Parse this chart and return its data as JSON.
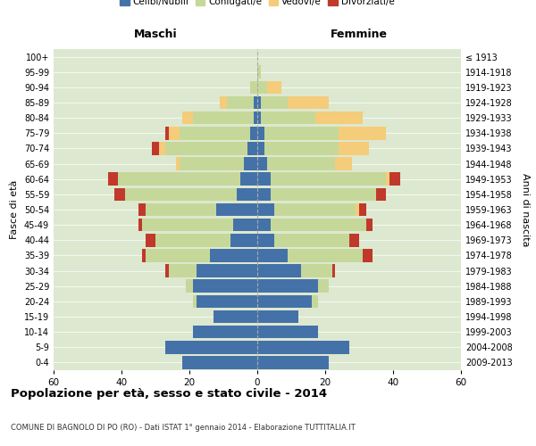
{
  "age_groups": [
    "0-4",
    "5-9",
    "10-14",
    "15-19",
    "20-24",
    "25-29",
    "30-34",
    "35-39",
    "40-44",
    "45-49",
    "50-54",
    "55-59",
    "60-64",
    "65-69",
    "70-74",
    "75-79",
    "80-84",
    "85-89",
    "90-94",
    "95-99",
    "100+"
  ],
  "birth_years": [
    "2009-2013",
    "2004-2008",
    "1999-2003",
    "1994-1998",
    "1989-1993",
    "1984-1988",
    "1979-1983",
    "1974-1978",
    "1969-1973",
    "1964-1968",
    "1959-1963",
    "1954-1958",
    "1949-1953",
    "1944-1948",
    "1939-1943",
    "1934-1938",
    "1929-1933",
    "1924-1928",
    "1919-1923",
    "1914-1918",
    "≤ 1913"
  ],
  "colors": {
    "celibe": "#4472a8",
    "coniugato": "#c5d89a",
    "vedovo": "#f5cc7a",
    "divorziato": "#c0392b"
  },
  "maschi": {
    "celibe": [
      22,
      27,
      19,
      13,
      18,
      19,
      18,
      14,
      8,
      7,
      12,
      6,
      5,
      4,
      3,
      2,
      1,
      1,
      0,
      0,
      0
    ],
    "coniugato": [
      0,
      0,
      0,
      0,
      1,
      2,
      8,
      19,
      22,
      27,
      21,
      33,
      36,
      19,
      24,
      21,
      18,
      8,
      2,
      0,
      0
    ],
    "vedovo": [
      0,
      0,
      0,
      0,
      0,
      0,
      0,
      0,
      0,
      0,
      0,
      0,
      0,
      1,
      2,
      3,
      3,
      2,
      0,
      0,
      0
    ],
    "divorziato": [
      0,
      0,
      0,
      0,
      0,
      0,
      1,
      1,
      3,
      1,
      2,
      3,
      3,
      0,
      2,
      1,
      0,
      0,
      0,
      0,
      0
    ]
  },
  "femmine": {
    "nubile": [
      21,
      27,
      18,
      12,
      16,
      18,
      13,
      9,
      5,
      4,
      5,
      4,
      4,
      3,
      2,
      2,
      1,
      1,
      0,
      0,
      0
    ],
    "coniugata": [
      0,
      0,
      0,
      0,
      2,
      3,
      9,
      22,
      22,
      28,
      24,
      31,
      34,
      20,
      22,
      22,
      16,
      8,
      3,
      1,
      0
    ],
    "vedova": [
      0,
      0,
      0,
      0,
      0,
      0,
      0,
      0,
      0,
      0,
      1,
      0,
      1,
      5,
      9,
      14,
      14,
      12,
      4,
      0,
      0
    ],
    "divorziata": [
      0,
      0,
      0,
      0,
      0,
      0,
      1,
      3,
      3,
      2,
      2,
      3,
      3,
      0,
      0,
      0,
      0,
      0,
      0,
      0,
      0
    ]
  },
  "title": "Popolazione per età, sesso e stato civile - 2014",
  "subtitle": "COMUNE DI BAGNOLO DI PO (RO) - Dati ISTAT 1° gennaio 2014 - Elaborazione TUTTITALIA.IT",
  "xlabel_left": "Maschi",
  "xlabel_right": "Femmine",
  "ylabel_left": "Fasce di età",
  "ylabel_right": "Anni di nascita",
  "xlim": 60,
  "legend_labels": [
    "Celibi/Nubili",
    "Coniugati/e",
    "Vedovi/e",
    "Divorziati/e"
  ]
}
